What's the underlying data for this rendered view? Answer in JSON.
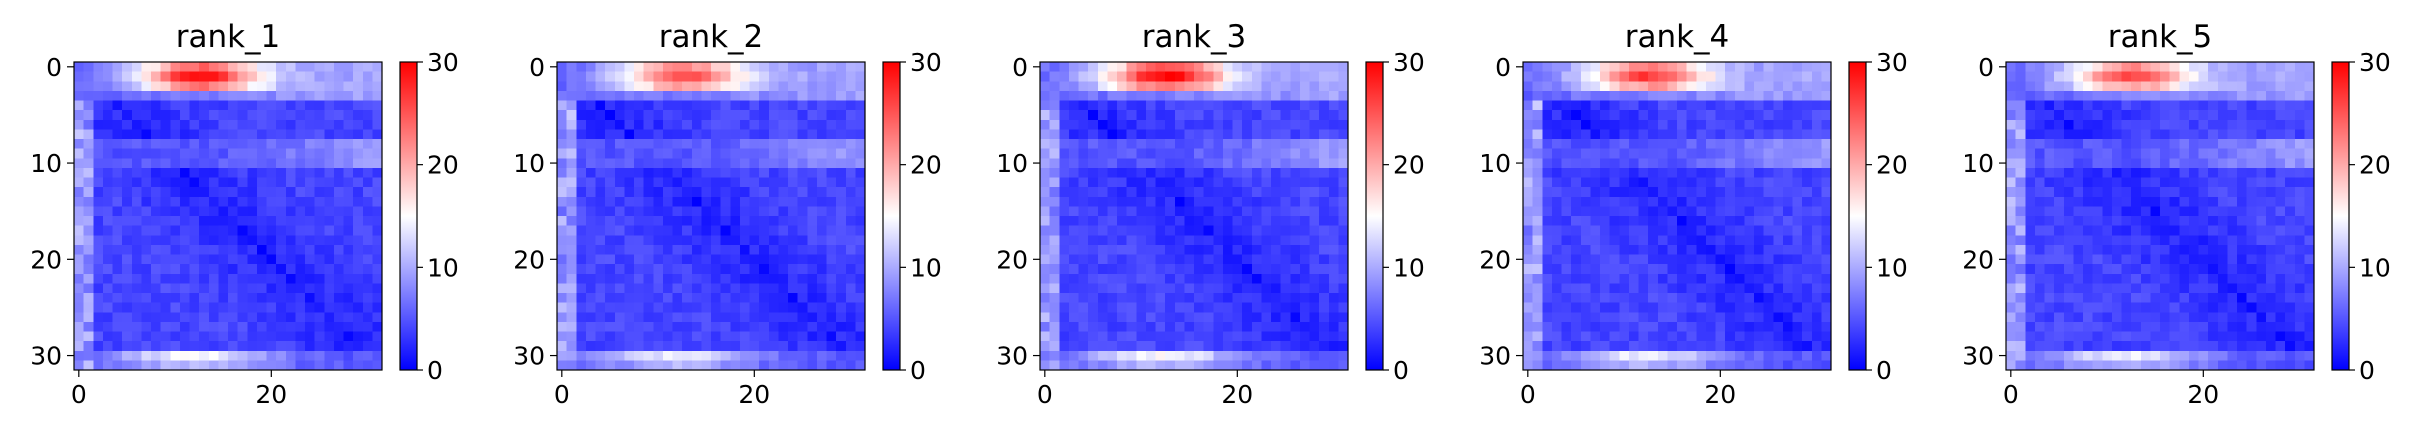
{
  "chart_data": [
    {
      "type": "heatmap",
      "title": "rank_1",
      "grid_size": 32,
      "xticks": [
        0,
        20
      ],
      "yticks": [
        0,
        10,
        20,
        30
      ],
      "colorbar": {
        "min": 0,
        "max": 30,
        "ticks": [
          0,
          10,
          20,
          30
        ],
        "colormap": "bwr",
        "colors": [
          "#0000ff",
          "#ffffff",
          "#ff0000"
        ]
      },
      "top_band_peak": 26,
      "bottom_band_peak": 15,
      "side_band_peak": 11
    },
    {
      "type": "heatmap",
      "title": "rank_2",
      "grid_size": 32,
      "xticks": [
        0,
        20
      ],
      "yticks": [
        0,
        10,
        20,
        30
      ],
      "colorbar": {
        "min": 0,
        "max": 30,
        "ticks": [
          0,
          10,
          20,
          30
        ],
        "colormap": "bwr",
        "colors": [
          "#0000ff",
          "#ffffff",
          "#ff0000"
        ]
      },
      "top_band_peak": 22,
      "bottom_band_peak": 14,
      "side_band_peak": 11
    },
    {
      "type": "heatmap",
      "title": "rank_3",
      "grid_size": 32,
      "xticks": [
        0,
        20
      ],
      "yticks": [
        0,
        10,
        20,
        30
      ],
      "colorbar": {
        "min": 0,
        "max": 30,
        "ticks": [
          0,
          10,
          20,
          30
        ],
        "colormap": "bwr",
        "colors": [
          "#0000ff",
          "#ffffff",
          "#ff0000"
        ]
      },
      "top_band_peak": 27,
      "bottom_band_peak": 15,
      "side_band_peak": 11
    },
    {
      "type": "heatmap",
      "title": "rank_4",
      "grid_size": 32,
      "xticks": [
        0,
        20
      ],
      "yticks": [
        0,
        10,
        20,
        30
      ],
      "colorbar": {
        "min": 0,
        "max": 30,
        "ticks": [
          0,
          10,
          20,
          30
        ],
        "colormap": "bwr",
        "colors": [
          "#0000ff",
          "#ffffff",
          "#ff0000"
        ]
      },
      "top_band_peak": 23,
      "bottom_band_peak": 14,
      "side_band_peak": 11
    },
    {
      "type": "heatmap",
      "title": "rank_5",
      "grid_size": 32,
      "xticks": [
        0,
        20
      ],
      "yticks": [
        0,
        10,
        20,
        30
      ],
      "colorbar": {
        "min": 0,
        "max": 30,
        "ticks": [
          0,
          10,
          20,
          30
        ],
        "colormap": "bwr",
        "colors": [
          "#0000ff",
          "#ffffff",
          "#ff0000"
        ]
      },
      "top_band_peak": 22,
      "bottom_band_peak": 14,
      "side_band_peak": 11
    }
  ]
}
